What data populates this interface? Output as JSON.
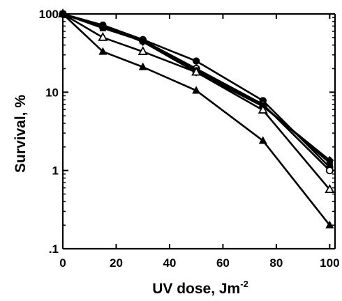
{
  "chart_data": {
    "type": "line",
    "title": "",
    "xlabel": "UV dose, Jm",
    "xlabel_superscript": "-2",
    "ylabel": "Survival, %",
    "xlim": [
      0,
      102
    ],
    "ylim": [
      0.1,
      100
    ],
    "yscale": "log",
    "grid": false,
    "legend": "none",
    "x_ticks": [
      0,
      20,
      40,
      60,
      80,
      100
    ],
    "x_tick_labels": [
      "0",
      "20",
      "40",
      "60",
      "80",
      "100"
    ],
    "y_ticks": [
      0.1,
      1,
      10,
      100
    ],
    "y_tick_labels": [
      ".1",
      "1",
      "10",
      "100"
    ],
    "series": [
      {
        "marker": "filled-circle",
        "x": [
          0,
          15,
          30,
          50,
          75,
          100
        ],
        "y": [
          100,
          72,
          47,
          25,
          7.8,
          1.1
        ]
      },
      {
        "marker": "open-circle",
        "x": [
          0,
          15,
          30,
          50,
          75,
          100
        ],
        "y": [
          100,
          68,
          46,
          20,
          7.0,
          1.0
        ]
      },
      {
        "marker": "filled-square",
        "x": [
          0,
          15,
          30,
          50,
          75,
          100
        ],
        "y": [
          100,
          66,
          45,
          19,
          6.8,
          1.25
        ]
      },
      {
        "marker": "filled-diamond",
        "x": [
          0,
          15,
          30,
          50,
          75,
          100
        ],
        "y": [
          100,
          70,
          44,
          18,
          6.6,
          1.35
        ]
      },
      {
        "marker": "open-triangle",
        "x": [
          0,
          15,
          30,
          50,
          75,
          100
        ],
        "y": [
          100,
          50,
          33,
          18,
          5.9,
          0.57
        ]
      },
      {
        "marker": "filled-triangle",
        "x": [
          0,
          15,
          30,
          50,
          75,
          100
        ],
        "y": [
          100,
          33,
          21,
          10.5,
          2.4,
          0.2
        ]
      }
    ]
  }
}
